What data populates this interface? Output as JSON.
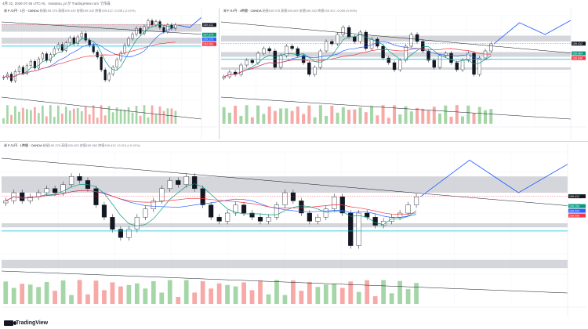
{
  "header": {
    "meta_text": "4月 22, 2026 07:46 UTC+9、masatou_pi が TradingView.com で作成"
  },
  "footer": {
    "brand": "TradingView"
  },
  "colors": {
    "up": "#131722",
    "down": "#131722",
    "resistance_band": "#b2b5be",
    "forecast": "#2962ff",
    "ma_green": "#089981",
    "ma_blue": "#2962ff",
    "ma_red": "#f23645",
    "cyan_line": "#00bcd4",
    "vol_up": "#a5d6a7",
    "vol_down": "#f7a9a7"
  },
  "panes": [
    {
      "id": "pane-daily",
      "title_symbol": "米ドル/円 · 1日 · OANDA",
      "ohlc": "始値159.378 高値159.449 安値159.342 終値159.412 -0.035 (-0.02%)",
      "price_tags": [
        {
          "label": "159.412",
          "kind": "last"
        },
        {
          "label": "157.270",
          "kind": "green"
        },
        {
          "label": "159.173",
          "kind": "blue"
        },
        {
          "label": "154.954",
          "kind": "red"
        }
      ]
    },
    {
      "id": "pane-4h",
      "title_symbol": "米ドル/円 · 4時間 · OANDA",
      "ohlc": "始値159.378 高値159.449 安値159.342 終値159.412 -0.000 (0.00%)",
      "price_tags": [
        {
          "label": "159.412",
          "kind": "last"
        },
        {
          "label": "159.064",
          "kind": "green"
        },
        {
          "label": "158.846",
          "kind": "red"
        }
      ]
    },
    {
      "id": "pane-1h",
      "title_symbol": "米ドル/円 · 1時間 · OANDA",
      "ohlc": "始値159.378 高値159.403 安値159.362 終値159.412 +0.010 (+0.01%)",
      "price_tags": [
        {
          "label": "159.412",
          "kind": "last"
        },
        {
          "label": "159.159",
          "kind": "green"
        },
        {
          "label": "159.024",
          "kind": "blue"
        },
        {
          "label": "158.958",
          "kind": "red"
        }
      ]
    }
  ],
  "chart_data": [
    {
      "type": "candlestick",
      "title": "米ドル/円 · 1日 · OANDA",
      "last_price": 159.412,
      "y_range": [
        150.5,
        160.5
      ],
      "candles_close": [
        153.2,
        153.6,
        152.8,
        153.9,
        154.4,
        153.7,
        154.6,
        155.1,
        154.3,
        155.4,
        156.0,
        155.2,
        155.9,
        156.6,
        157.1,
        156.4,
        157.3,
        157.9,
        157.2,
        158.0,
        158.4,
        157.6,
        157.0,
        156.2,
        155.6,
        154.1,
        152.9,
        153.6,
        154.4,
        155.3,
        156.1,
        157.0,
        157.8,
        158.3,
        159.0,
        158.4,
        159.2,
        159.9,
        159.4,
        159.8,
        159.1,
        158.6,
        159.4,
        159.0,
        159.4
      ],
      "zones": [
        [
          158.6,
          159.5
        ],
        [
          157.2,
          157.9
        ]
      ],
      "forecast": [
        159.4,
        159.1,
        160.3
      ]
    },
    {
      "type": "candlestick",
      "title": "米ドル/円 · 4時間 · OANDA",
      "last_price": 159.412,
      "y_range": [
        157.0,
        160.6
      ],
      "candles_close": [
        158.0,
        158.2,
        158.1,
        158.5,
        158.7,
        158.6,
        159.0,
        159.2,
        159.1,
        158.4,
        158.9,
        159.3,
        159.2,
        158.9,
        158.6,
        158.1,
        158.4,
        159.1,
        159.5,
        159.4,
        159.8,
        160.1,
        159.7,
        159.5,
        159.9,
        159.2,
        159.6,
        159.3,
        158.8,
        158.6,
        158.3,
        158.7,
        159.3,
        159.8,
        159.5,
        159.1,
        158.7,
        158.4,
        158.9,
        159.0,
        158.6,
        158.3,
        158.7,
        159.0,
        158.1,
        158.8,
        159.1,
        159.4
      ],
      "zones": [
        [
          159.5,
          159.75
        ],
        [
          158.85,
          159.05
        ],
        [
          158.3,
          158.4
        ]
      ],
      "forecast": [
        159.4,
        160.3,
        159.8,
        160.4
      ]
    },
    {
      "type": "candlestick",
      "title": "米ドル/円 · 1時間 · OANDA",
      "last_price": 159.412,
      "y_range": [
        157.5,
        160.5
      ],
      "candles_close": [
        159.3,
        159.5,
        159.3,
        159.4,
        159.5,
        159.6,
        159.5,
        159.7,
        159.9,
        159.8,
        159.6,
        159.2,
        158.9,
        158.6,
        158.4,
        158.6,
        158.9,
        159.1,
        159.3,
        159.6,
        159.8,
        159.7,
        159.9,
        159.6,
        159.2,
        158.9,
        158.8,
        159.0,
        159.2,
        159.0,
        158.9,
        158.8,
        158.9,
        159.2,
        159.5,
        159.3,
        159.0,
        158.8,
        158.9,
        159.1,
        159.4,
        159.0,
        158.2,
        159.0,
        158.9,
        158.7,
        158.8,
        158.9,
        159.0,
        159.2,
        159.4
      ],
      "zones": [
        [
          159.5,
          159.9
        ],
        [
          158.65,
          158.75
        ],
        [
          157.65,
          157.85
        ]
      ],
      "forecast": [
        159.4,
        160.3,
        159.5,
        160.2
      ]
    }
  ]
}
